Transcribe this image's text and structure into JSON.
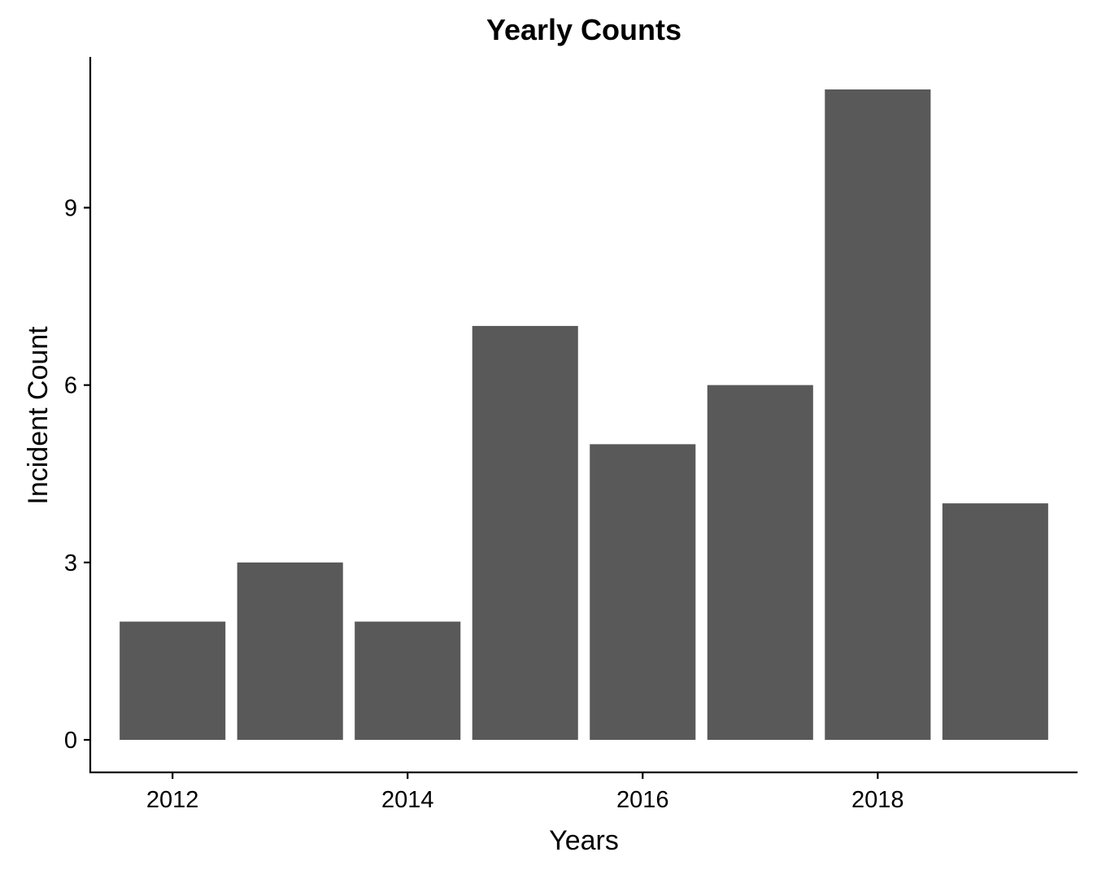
{
  "chart_data": {
    "type": "bar",
    "title": "Yearly Counts",
    "xlabel": "Years",
    "ylabel": "Incident Count",
    "categories": [
      2012,
      2013,
      2014,
      2015,
      2016,
      2017,
      2018,
      2019
    ],
    "values": [
      2,
      3,
      2,
      7,
      5,
      6,
      11,
      4
    ],
    "xlim": [
      2011.3,
      2019.7
    ],
    "ylim": [
      -0.55,
      11.55
    ],
    "x_ticks": [
      2012,
      2014,
      2016,
      2018
    ],
    "y_ticks": [
      0,
      3,
      6,
      9
    ],
    "bar_color": "#595959",
    "grid": false,
    "legend": "none"
  }
}
